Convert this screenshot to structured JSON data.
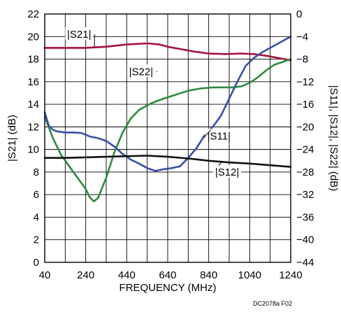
{
  "chart_data": {
    "type": "line",
    "xlabel": "FREQUENCY (MHz)",
    "ylabel_left": "|S21| (dB)",
    "ylabel_right": "|S11|, |S12|, |S22| (dB)",
    "figure_id": "DC2078a F02",
    "xlim": [
      40,
      1240
    ],
    "xticks": [
      40,
      240,
      440,
      640,
      840,
      1040,
      1240
    ],
    "ylim_left": [
      0,
      22
    ],
    "yticks_left": [
      0,
      2,
      4,
      6,
      8,
      10,
      12,
      14,
      16,
      18,
      20,
      22
    ],
    "ylim_right": [
      -44,
      0
    ],
    "yticks_right": [
      -44,
      -40,
      -36,
      -32,
      -28,
      -24,
      -20,
      -16,
      -12,
      -8,
      -4,
      0
    ],
    "grid": true,
    "series": [
      {
        "name": "|S21|",
        "axis": "left",
        "color": "#a3123a",
        "x": [
          40,
          140,
          240,
          340,
          440,
          540,
          600,
          640,
          700,
          760,
          840,
          920,
          1000,
          1060,
          1120,
          1180,
          1240
        ],
        "y": [
          19.0,
          19.0,
          19.0,
          19.1,
          19.3,
          19.4,
          19.3,
          19.1,
          18.9,
          18.7,
          18.5,
          18.45,
          18.5,
          18.45,
          18.3,
          18.1,
          17.9
        ]
      },
      {
        "name": "|S22|",
        "axis": "right",
        "color": "#2e8b3d",
        "x": [
          40,
          80,
          120,
          160,
          200,
          240,
          260,
          280,
          300,
          340,
          380,
          420,
          460,
          500,
          560,
          620,
          680,
          740,
          800,
          860,
          920,
          960,
          1000,
          1040,
          1080,
          1120,
          1160,
          1200,
          1240
        ],
        "y": [
          -18.2,
          -22.0,
          -25.0,
          -27.0,
          -29.0,
          -31.0,
          -32.5,
          -33.2,
          -32.6,
          -29.0,
          -24.5,
          -21.0,
          -18.5,
          -17.0,
          -15.8,
          -15.0,
          -14.3,
          -13.6,
          -13.2,
          -13.0,
          -13.0,
          -13.0,
          -12.8,
          -12.2,
          -11.2,
          -10.0,
          -9.0,
          -8.5,
          -8.0
        ]
      },
      {
        "name": "|S11|",
        "axis": "right",
        "color": "#3a4fa6",
        "x": [
          40,
          60,
          80,
          100,
          140,
          180,
          220,
          260,
          300,
          340,
          380,
          420,
          460,
          500,
          540,
          580,
          620,
          660,
          700,
          740,
          780,
          820,
          860,
          900,
          940,
          980,
          1020,
          1060,
          1100,
          1140,
          1180,
          1210,
          1240
        ],
        "y": [
          -17.4,
          -19.8,
          -20.5,
          -20.8,
          -21.0,
          -21.0,
          -21.1,
          -21.7,
          -22.0,
          -22.5,
          -23.5,
          -24.8,
          -25.8,
          -26.5,
          -27.3,
          -27.8,
          -27.5,
          -27.3,
          -27.0,
          -25.5,
          -23.8,
          -21.5,
          -20.0,
          -18.0,
          -15.0,
          -12.0,
          -9.2,
          -7.8,
          -6.8,
          -6.0,
          -5.2,
          -4.6,
          -4.0
        ]
      },
      {
        "name": "|S12|",
        "axis": "right",
        "color": "#111111",
        "x": [
          40,
          140,
          240,
          340,
          440,
          540,
          640,
          740,
          840,
          940,
          1040,
          1140,
          1240
        ],
        "y": [
          -25.5,
          -25.5,
          -25.4,
          -25.3,
          -25.2,
          -25.1,
          -25.3,
          -25.6,
          -26.0,
          -26.3,
          -26.5,
          -26.8,
          -27.1
        ]
      }
    ],
    "annotations": [
      {
        "text": "|S21|",
        "series": "|S21|",
        "x": 208,
        "y": 20.2,
        "axis": "left"
      },
      {
        "text": "|S22|",
        "series": "|S22|",
        "x": 510,
        "y": -10.2,
        "axis": "right"
      },
      {
        "text": "|S11|",
        "series": "|S11|",
        "x": 890,
        "y": -21.6,
        "axis": "right"
      },
      {
        "text": "|S12|",
        "series": "|S12|",
        "x": 930,
        "y": -28.0,
        "axis": "right"
      }
    ]
  }
}
